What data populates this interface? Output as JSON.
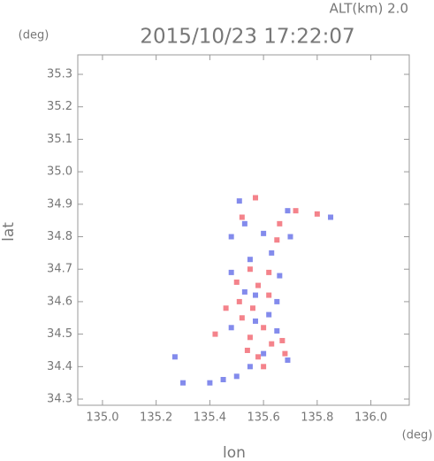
{
  "chart_data": {
    "type": "scatter",
    "title": "2015/10/23 17:22:07",
    "subtitle": "ALT(km) 2.0",
    "xlabel": "lon",
    "xlabel_unit": "(deg)",
    "ylabel": "lat",
    "ylabel_unit": "(deg)",
    "xlim": [
      134.908,
      136.143
    ],
    "ylim": [
      34.281,
      35.36
    ],
    "xticks": [
      {
        "value": 135,
        "label": "135.0"
      },
      135.2,
      135.4,
      135.6,
      135.8,
      {
        "value": 136,
        "label": "136.0"
      }
    ],
    "yticks": [
      34.3,
      34.4,
      34.5,
      34.6,
      34.7,
      34.8,
      34.9,
      {
        "value": 35,
        "label": "35.0"
      },
      35.1,
      35.2,
      35.3
    ],
    "series": [
      {
        "color": "#f05a64",
        "x": [
          135.57,
          135.52,
          135.66,
          135.72,
          135.8,
          135.65,
          135.55,
          135.5,
          135.58,
          135.62,
          135.56,
          135.52,
          135.6,
          135.55,
          135.63,
          135.58,
          135.67,
          135.54,
          135.6,
          135.51,
          135.46,
          135.68,
          135.42,
          135.62
        ],
        "y": [
          34.92,
          34.86,
          34.84,
          34.88,
          34.87,
          34.79,
          34.7,
          34.66,
          34.65,
          34.62,
          34.58,
          34.55,
          34.52,
          34.49,
          34.47,
          34.43,
          34.48,
          34.45,
          34.4,
          34.6,
          34.58,
          34.44,
          34.5,
          34.69
        ]
      },
      {
        "color": "#5a64e6",
        "x": [
          135.51,
          135.53,
          135.48,
          135.69,
          135.85,
          135.6,
          135.7,
          135.55,
          135.63,
          135.48,
          135.57,
          135.65,
          135.53,
          135.62,
          135.57,
          135.65,
          135.48,
          135.69,
          135.6,
          135.55,
          135.27,
          135.3,
          135.45,
          135.5,
          135.4,
          135.66
        ],
        "y": [
          34.91,
          34.84,
          34.8,
          34.88,
          34.86,
          34.81,
          34.8,
          34.73,
          34.75,
          34.69,
          34.62,
          34.6,
          34.63,
          34.56,
          34.54,
          34.51,
          34.52,
          34.42,
          34.44,
          34.4,
          34.43,
          34.35,
          34.36,
          34.37,
          34.35,
          34.68
        ]
      }
    ]
  }
}
